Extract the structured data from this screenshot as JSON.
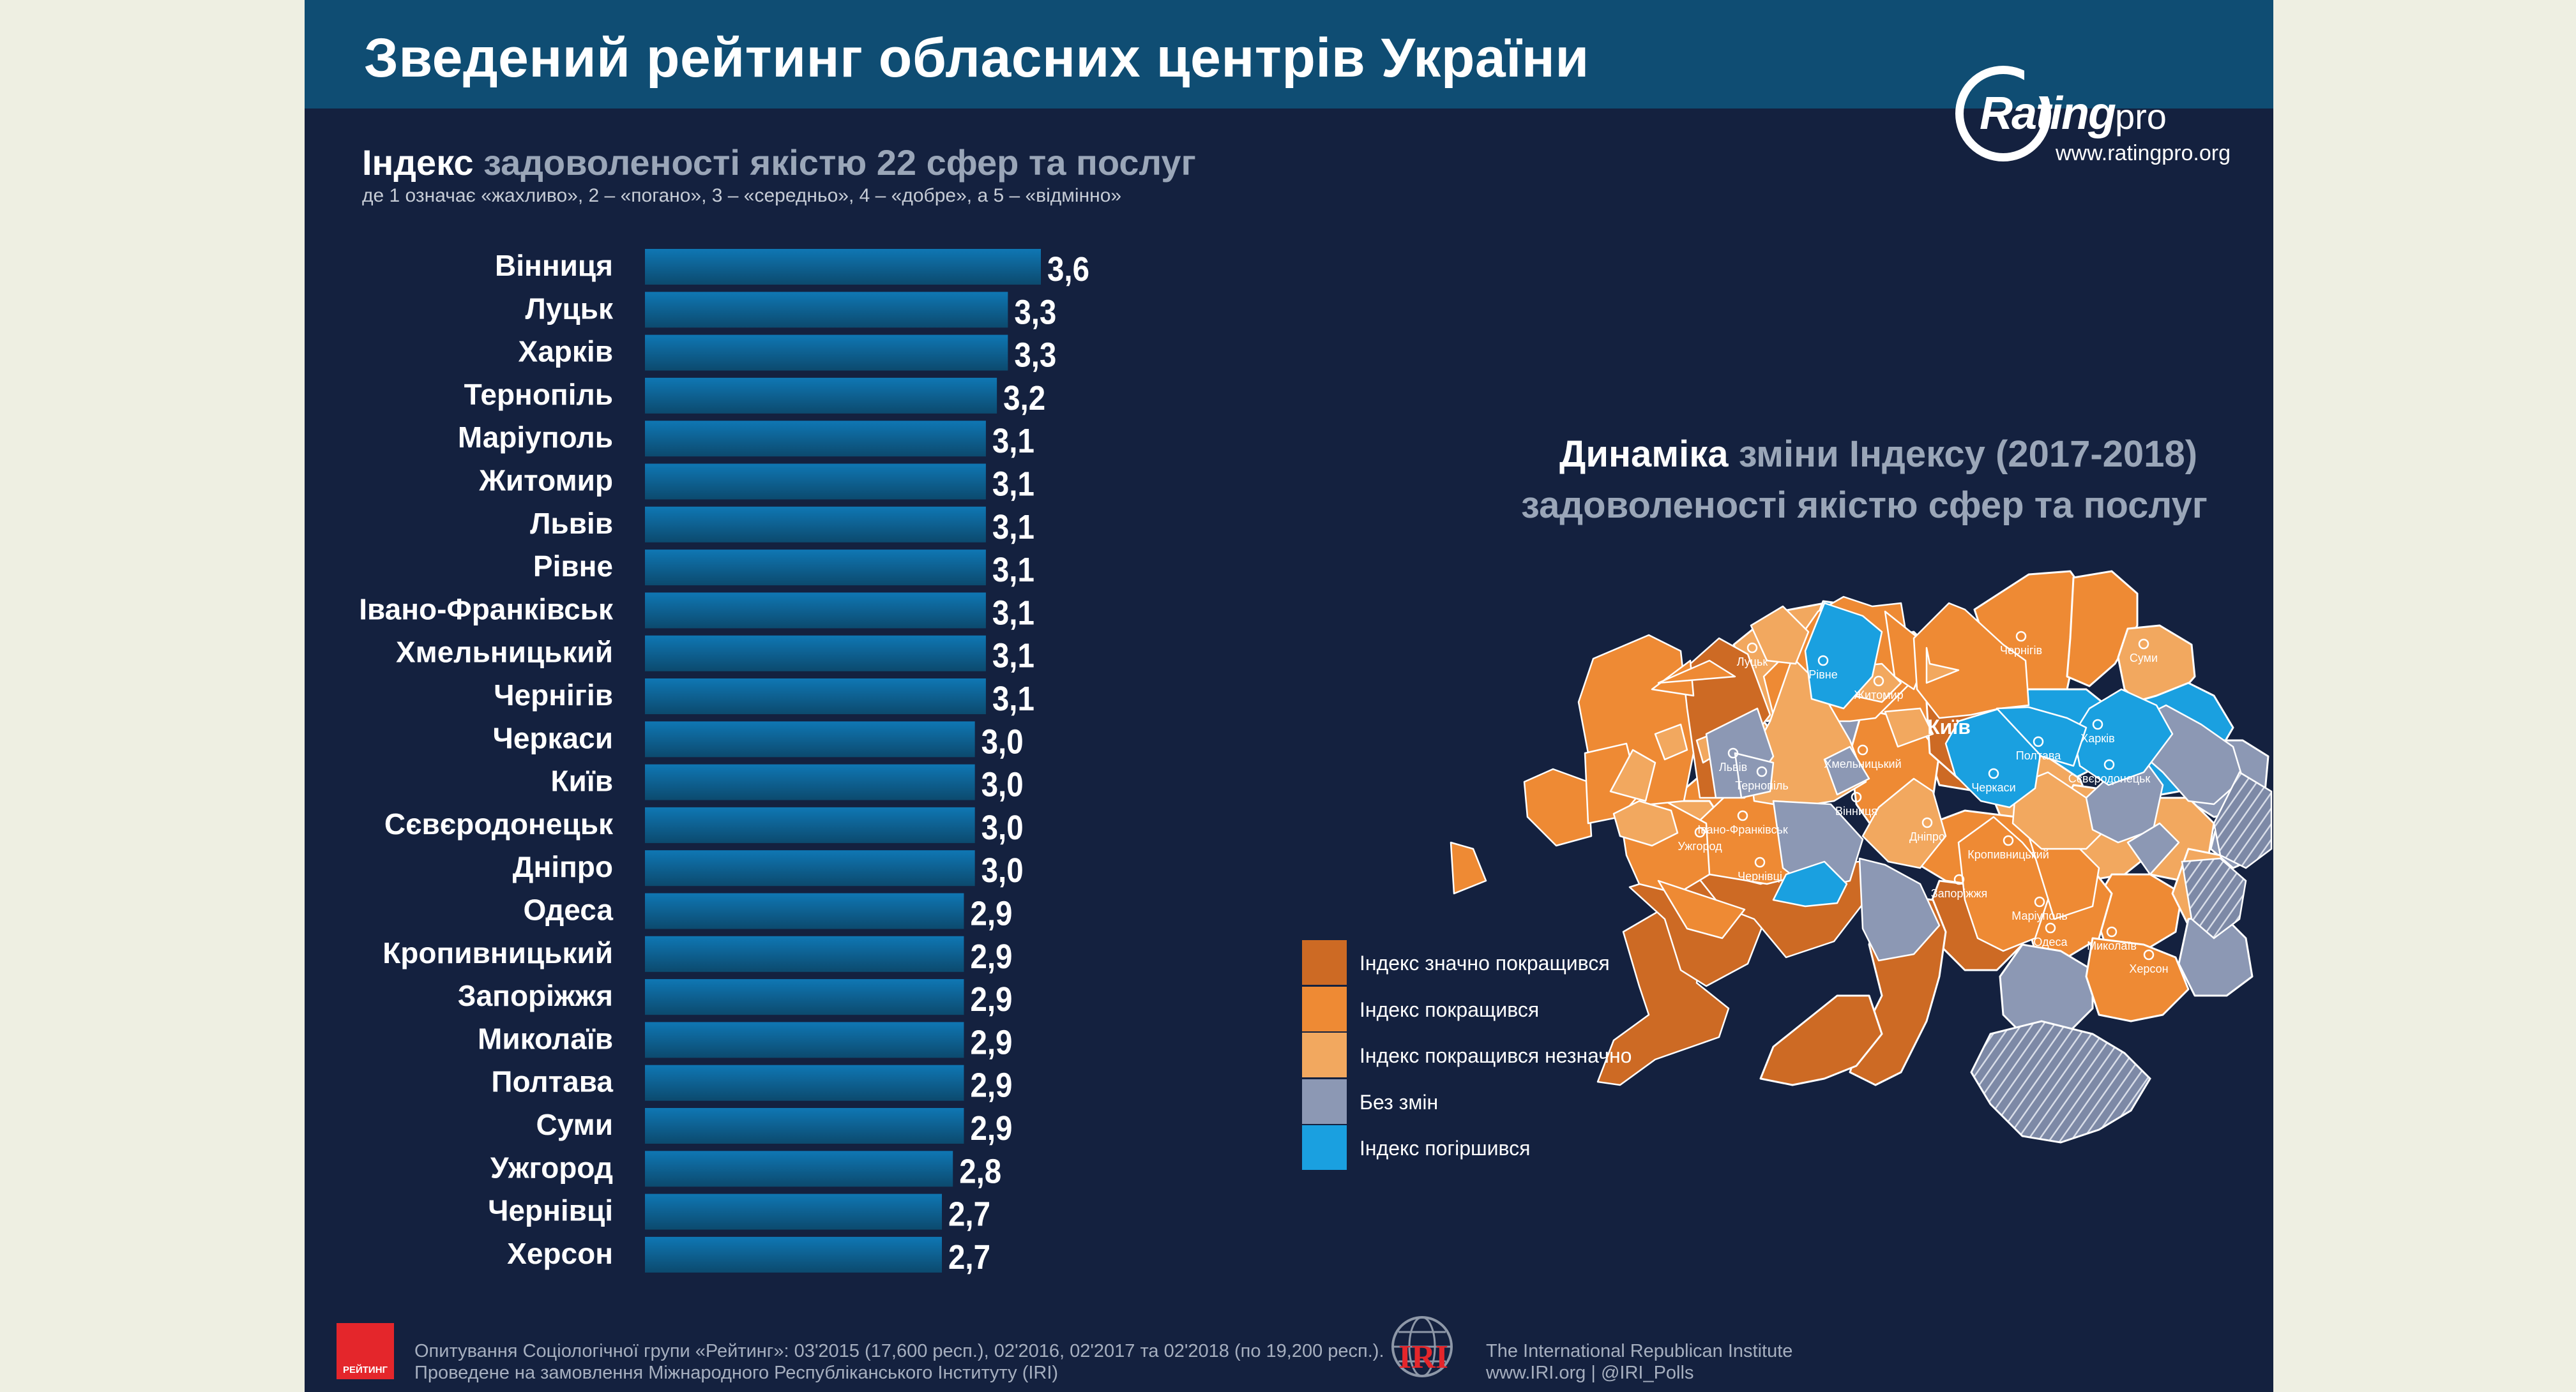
{
  "header": {
    "title": "Зведений рейтинг обласних центрів України",
    "logo_brand": "Rating",
    "logo_suffix": "pro",
    "logo_url": "www.ratingpro.org"
  },
  "left_panel": {
    "subtitle_strong": "Індекс",
    "subtitle_rest": " задоволеності якістю 22 сфер та послуг",
    "scale_note": "де 1 означає «жахливо», 2 – «погано», 3 – «середньо», 4 – «добре», а 5 – «відмінно»"
  },
  "chart_data": {
    "type": "bar",
    "orientation": "horizontal",
    "categories": [
      "Вінниця",
      "Луцьк",
      "Харків",
      "Тернопіль",
      "Маріуполь",
      "Житомир",
      "Львів",
      "Рівне",
      "Івано-Франківськ",
      "Хмельницький",
      "Чернігів",
      "Черкаси",
      "Київ",
      "Сєвєродонецьк",
      "Дніпро",
      "Одеса",
      "Кропивницький",
      "Запоріжжя",
      "Миколаїв",
      "Полтава",
      "Суми",
      "Ужгород",
      "Чернівці",
      "Херсон"
    ],
    "values": [
      3.6,
      3.3,
      3.3,
      3.2,
      3.1,
      3.1,
      3.1,
      3.1,
      3.1,
      3.1,
      3.1,
      3.0,
      3.0,
      3.0,
      3.0,
      2.9,
      2.9,
      2.9,
      2.9,
      2.9,
      2.9,
      2.8,
      2.7,
      2.7
    ],
    "value_labels": [
      "3,6",
      "3,3",
      "3,3",
      "3,2",
      "3,1",
      "3,1",
      "3,1",
      "3,1",
      "3,1",
      "3,1",
      "3,1",
      "3,0",
      "3,0",
      "3,0",
      "3,0",
      "2,9",
      "2,9",
      "2,9",
      "2,9",
      "2,9",
      "2,9",
      "2,8",
      "2,7",
      "2,7"
    ],
    "gradient_colors": [
      "#0c4a6e",
      "#0f77b4"
    ],
    "label_color": "#ffffff",
    "grid": false
  },
  "map_panel": {
    "title_strong": "Динаміка",
    "title_rest": " зміни Індексу (2017-2018)",
    "subtitle": "задоволеності якістю сфер та послуг",
    "cities": [
      "Луцьк",
      "Рівне",
      "Житомир",
      "Київ",
      "Чернігів",
      "Суми",
      "Харків",
      "Полтава",
      "Львів",
      "Хмельницький",
      "Тернопіль",
      "Вінниця",
      "Черкаси",
      "Сєвєродонецьк",
      "Івано-Франківськ",
      "Ужгород",
      "Чернівці",
      "Кропивницький",
      "Дніпро",
      "Запоріжжя",
      "Маріуполь",
      "Одеса",
      "Миколаїв",
      "Херсон"
    ],
    "colors": {
      "strong": "#cd6a24",
      "improved": "#ee8a34",
      "slight": "#f2a85f",
      "none": "#8c98b4",
      "worse": "#1aa0e0"
    }
  },
  "legend": [
    {
      "label": "Індекс значно покращився",
      "color": "#cd6a24"
    },
    {
      "label": "Індекс покращився",
      "color": "#ee8a34"
    },
    {
      "label": "Індекс покращився незначно",
      "color": "#f2a85f"
    },
    {
      "label": "Без змін",
      "color": "#8c98b4"
    },
    {
      "label": "Індекс погіршився",
      "color": "#1aa0e0"
    }
  ],
  "footer": {
    "logo_text": "РЕЙТИНГ",
    "line1": "Опитування Соціологічної групи «Рейтинг»: 03'2015 (17,600 респ.), 02'2016, 02'2017 та 02'2018 (по 19,200 респ.).",
    "line2": "Проведене на замовлення Міжнародного Республіканського Інституту (IRI)",
    "iri_abbr": "IRI",
    "iri_name": "The International Republican Institute",
    "iri_contacts": "www.IRI.org | @IRI_Polls"
  }
}
